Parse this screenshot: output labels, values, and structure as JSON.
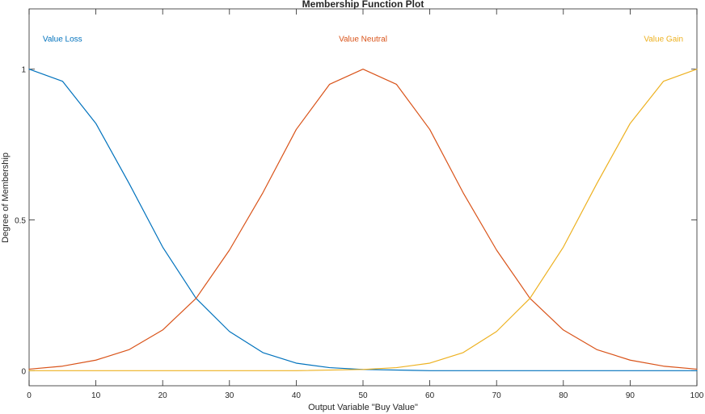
{
  "chart_data": {
    "type": "line",
    "title": "Membership Function Plot",
    "xlabel": "Output Variable \"Buy Value\"",
    "ylabel": "Degree of Membership",
    "xlim": [
      0,
      100
    ],
    "ylim": [
      -0.05,
      1.2
    ],
    "x_ticks": [
      0,
      10,
      20,
      30,
      40,
      50,
      60,
      70,
      80,
      90,
      100
    ],
    "y_ticks": [
      0,
      0.5,
      1
    ],
    "grid": false,
    "colors": {
      "loss": "#0072BD",
      "neutral": "#D95319",
      "gain": "#EDB120"
    },
    "series": [
      {
        "name": "Value Loss",
        "color": "#0072BD",
        "label_color": "#0072BD",
        "label_anchor": [
          5,
          1.1
        ],
        "points": [
          [
            0,
            1.0
          ],
          [
            5,
            0.96
          ],
          [
            10,
            0.82
          ],
          [
            15,
            0.62
          ],
          [
            20,
            0.41
          ],
          [
            25,
            0.24
          ],
          [
            30,
            0.13
          ],
          [
            35,
            0.06
          ],
          [
            40,
            0.025
          ],
          [
            45,
            0.01
          ],
          [
            50,
            0.004
          ],
          [
            60,
            0.0
          ],
          [
            70,
            0.0
          ],
          [
            80,
            0.0
          ],
          [
            90,
            0.0
          ],
          [
            100,
            0.0
          ]
        ]
      },
      {
        "name": "Value Neutral",
        "color": "#D95319",
        "label_color": "#D95319",
        "label_anchor": [
          50,
          1.1
        ],
        "points": [
          [
            0,
            0.005
          ],
          [
            5,
            0.015
          ],
          [
            10,
            0.035
          ],
          [
            15,
            0.07
          ],
          [
            20,
            0.135
          ],
          [
            25,
            0.24
          ],
          [
            30,
            0.4
          ],
          [
            35,
            0.59
          ],
          [
            40,
            0.8
          ],
          [
            45,
            0.95
          ],
          [
            50,
            1.0
          ],
          [
            55,
            0.95
          ],
          [
            60,
            0.8
          ],
          [
            65,
            0.59
          ],
          [
            70,
            0.4
          ],
          [
            75,
            0.24
          ],
          [
            80,
            0.135
          ],
          [
            85,
            0.07
          ],
          [
            90,
            0.035
          ],
          [
            95,
            0.015
          ],
          [
            100,
            0.005
          ]
        ]
      },
      {
        "name": "Value Gain",
        "color": "#EDB120",
        "label_color": "#EDB120",
        "label_anchor": [
          95,
          1.1
        ],
        "points": [
          [
            0,
            0.0
          ],
          [
            10,
            0.0
          ],
          [
            20,
            0.0
          ],
          [
            30,
            0.0
          ],
          [
            40,
            0.0
          ],
          [
            50,
            0.004
          ],
          [
            55,
            0.01
          ],
          [
            60,
            0.025
          ],
          [
            65,
            0.06
          ],
          [
            70,
            0.13
          ],
          [
            75,
            0.24
          ],
          [
            80,
            0.41
          ],
          [
            85,
            0.62
          ],
          [
            90,
            0.82
          ],
          [
            95,
            0.96
          ],
          [
            100,
            1.0
          ]
        ]
      }
    ]
  }
}
